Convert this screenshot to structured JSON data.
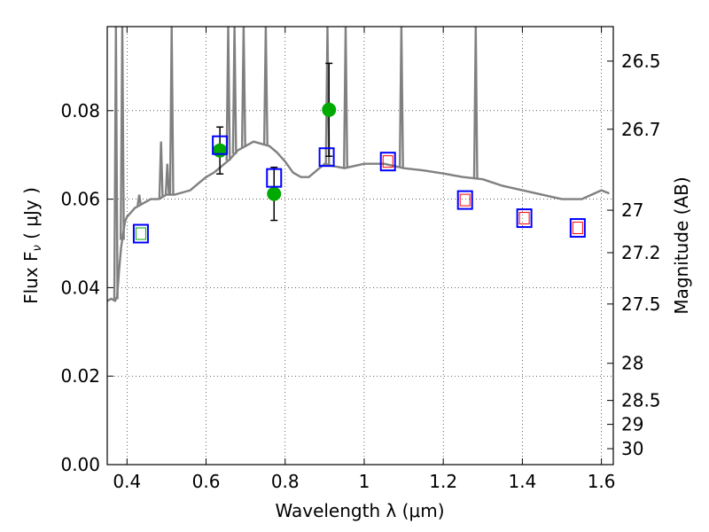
{
  "chart_data": {
    "type": "scatter",
    "xlabel": "Wavelength  λ (μm)",
    "ylabel": "Flux  F",
    "ylabel_sub": "ν",
    "ylabel_unit": "  ( μJy )",
    "y2label": "Magnitude (AB)",
    "xlim": [
      0.35,
      1.63
    ],
    "ylim": [
      0.0,
      0.099
    ],
    "grid": true,
    "x_ticks": [
      0.4,
      0.6,
      0.8,
      1.0,
      1.2,
      1.4,
      1.6
    ],
    "x_tick_labels": [
      "0.4",
      "0.6",
      "0.8",
      "1",
      "1.2",
      "1.4",
      "1.6"
    ],
    "y_ticks": [
      0.0,
      0.02,
      0.04,
      0.06,
      0.08
    ],
    "y_tick_labels": [
      "0.00",
      "0.02",
      "0.04",
      "0.06",
      "0.08"
    ],
    "y2_ticks": [
      {
        "label": "26.5",
        "flux": 0.0912
      },
      {
        "label": "26.7",
        "flux": 0.0758
      },
      {
        "label": "27",
        "flux": 0.0575
      },
      {
        "label": "27.2",
        "flux": 0.0479
      },
      {
        "label": "27.5",
        "flux": 0.0363
      },
      {
        "label": "28",
        "flux": 0.0229
      },
      {
        "label": "28.5",
        "flux": 0.0145
      },
      {
        "label": "29",
        "flux": 0.0091
      },
      {
        "label": "30",
        "flux": 0.0036
      }
    ],
    "series": [
      {
        "style": "line",
        "color": "#808080",
        "x": [
          0.35,
          0.36,
          0.37,
          0.375,
          0.38,
          0.385,
          0.39,
          0.395,
          0.4,
          0.41,
          0.42,
          0.44,
          0.46,
          0.48,
          0.5,
          0.52,
          0.54,
          0.56,
          0.58,
          0.6,
          0.62,
          0.64,
          0.66,
          0.68,
          0.7,
          0.72,
          0.74,
          0.76,
          0.78,
          0.8,
          0.82,
          0.84,
          0.86,
          0.88,
          0.9,
          0.92,
          0.95,
          1.0,
          1.05,
          1.1,
          1.15,
          1.2,
          1.25,
          1.3,
          1.35,
          1.4,
          1.45,
          1.5,
          1.55,
          1.6,
          1.62
        ],
        "y": [
          0.037,
          0.0375,
          0.037,
          0.038,
          0.044,
          0.049,
          0.052,
          0.055,
          0.056,
          0.057,
          0.058,
          0.059,
          0.06,
          0.06,
          0.061,
          0.061,
          0.0615,
          0.062,
          0.0635,
          0.065,
          0.066,
          0.0675,
          0.069,
          0.071,
          0.072,
          0.073,
          0.0725,
          0.072,
          0.0705,
          0.0685,
          0.066,
          0.065,
          0.065,
          0.0665,
          0.068,
          0.0675,
          0.067,
          0.068,
          0.068,
          0.067,
          0.0665,
          0.0658,
          0.065,
          0.0645,
          0.063,
          0.062,
          0.061,
          0.06,
          0.06,
          0.062,
          0.0613
        ]
      },
      {
        "style": "emission-lines",
        "color": "#808080",
        "x": [
          0.372,
          0.388,
          0.431,
          0.486,
          0.502,
          0.513,
          0.656,
          0.672,
          0.695,
          0.751,
          0.907,
          0.953,
          1.094,
          1.282
        ],
        "y": [
          0.099,
          0.099,
          0.061,
          0.073,
          0.068,
          0.099,
          0.099,
          0.099,
          0.099,
          0.099,
          0.099,
          0.099,
          0.099,
          0.099
        ]
      },
      {
        "style": "filled-circle",
        "color": "#00aa00",
        "x": [
          0.635,
          0.772,
          0.911
        ],
        "y": [
          0.071,
          0.0612,
          0.0802
        ],
        "yerr": [
          0.0053,
          0.006,
          0.0105
        ]
      },
      {
        "style": "open-square-large",
        "color": "#0000ff",
        "x": [
          0.435,
          0.635,
          0.772,
          0.905,
          1.06,
          1.255,
          1.405,
          1.54
        ],
        "y": [
          0.0522,
          0.0722,
          0.0648,
          0.0695,
          0.0685,
          0.0598,
          0.0557,
          0.0535
        ]
      },
      {
        "style": "open-square-small",
        "color": "#00aa00",
        "x": [
          0.435
        ],
        "y": [
          0.0522
        ]
      },
      {
        "style": "open-square-small",
        "color": "#ff0000",
        "x": [
          1.06,
          1.255,
          1.405,
          1.54
        ],
        "y": [
          0.0685,
          0.0598,
          0.0557,
          0.0535
        ]
      }
    ]
  }
}
